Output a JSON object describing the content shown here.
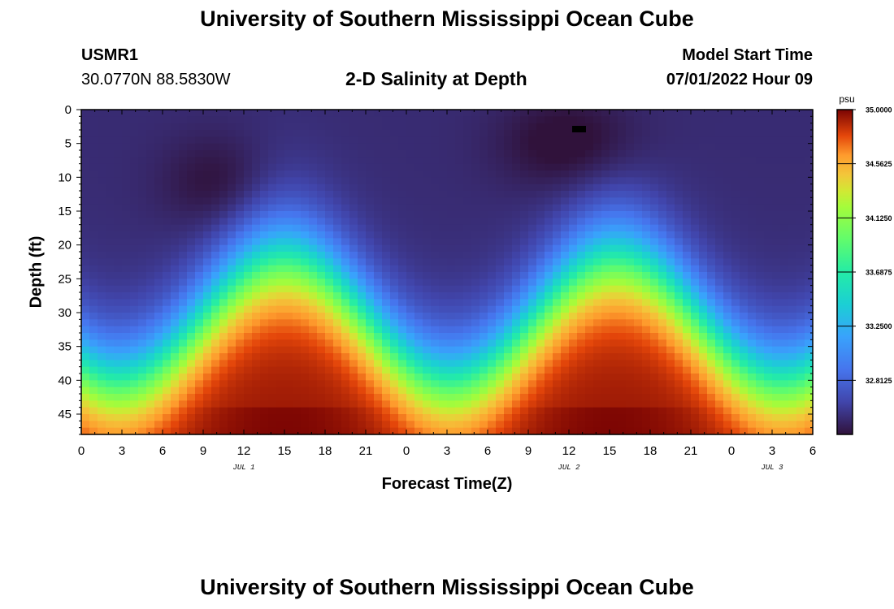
{
  "header": {
    "title": "University of Southern Mississippi Ocean Cube",
    "station_id": "USMR1",
    "coordinates": "30.0770N  88.5830W",
    "plot_title": "2-D Salinity at Depth",
    "model_start_label": "Model Start Time",
    "model_start_value": "07/01/2022 Hour 09"
  },
  "footer": {
    "title": "University of Southern Mississippi Ocean Cube"
  },
  "chart_data": {
    "type": "heatmap",
    "title": "2-D Salinity at Depth",
    "xlabel": "Forecast Time(Z)",
    "ylabel": "Depth (ft)",
    "x_tick_labels": [
      "0",
      "3",
      "6",
      "9",
      "12",
      "15",
      "18",
      "21",
      "0",
      "3",
      "6",
      "9",
      "12",
      "15",
      "18",
      "21",
      "0",
      "3",
      "6"
    ],
    "x_range_hours": [
      0,
      54
    ],
    "day_labels": [
      {
        "label": "JUL 1",
        "hour": 12
      },
      {
        "label": "JUL 2",
        "hour": 36
      },
      {
        "label": "JUL 3",
        "hour": 51
      }
    ],
    "y_ticks": [
      0,
      5,
      10,
      15,
      20,
      25,
      30,
      35,
      40,
      45
    ],
    "y_range": [
      0,
      48
    ],
    "colorbar": {
      "unit": "psu",
      "min": 32.375,
      "max": 35.0,
      "tick_labels": [
        "35.0000",
        "34.5625",
        "34.1250",
        "33.6875",
        "33.2500",
        "32.8125"
      ],
      "tick_values": [
        35.0,
        34.5625,
        34.125,
        33.6875,
        33.25,
        32.8125
      ]
    },
    "description": "Salinity field by forecast hour and depth; high salinity (red) near bottom peaking near hours 15 and 39, low salinity (dark purple) at surface",
    "surface_salinity_approx": 32.5,
    "bottom_salinity_max_approx": 35.0,
    "halocline_min_depth_ft_approx": 22,
    "halocline_max_depth_ft_approx": 40,
    "colors": {
      "low": "#2c1c4a",
      "mid": "#56c94f",
      "high": "#7a0403"
    }
  }
}
